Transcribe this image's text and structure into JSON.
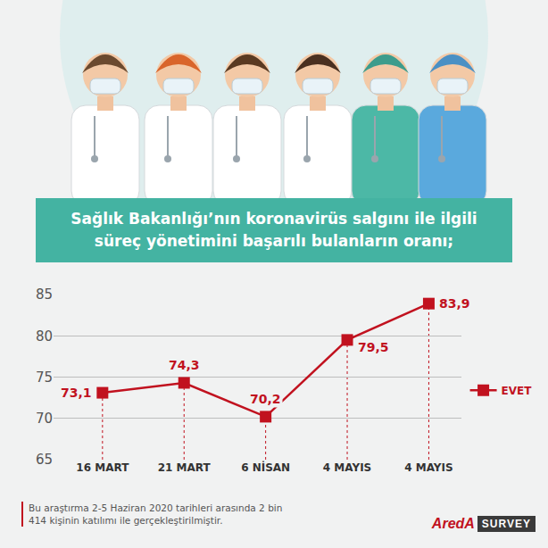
{
  "chart_data": {
    "type": "line",
    "title": "Sağlık Bakanlığı’nın koronavirüs salgını ile ilgili süreç yönetimini başarılı bulanların oranı;",
    "categories": [
      "16 MART",
      "21 MART",
      "6 NİSAN",
      "4 MAYIS",
      "4 MAYIS"
    ],
    "series": [
      {
        "name": "EVET",
        "color": "#c1121f",
        "values": [
          73.1,
          74.3,
          70.2,
          79.5,
          83.9
        ],
        "value_labels": [
          "73,1",
          "74,3",
          "70,2",
          "79,5",
          "83,9"
        ],
        "marker": "square",
        "line_style": "solid"
      }
    ],
    "ylim": [
      65,
      85
    ],
    "yticks": [
      65,
      70,
      75,
      80,
      85
    ],
    "grid": true,
    "legend": "right",
    "data_labels": true,
    "footnote": "Bu araştırma 2-5 Haziran 2020 tarihleri arasında 2 bin 414 kişinin katılımı ile gerçekleştirilmiştir.",
    "logo": [
      "AredA",
      "SURVEY"
    ]
  }
}
